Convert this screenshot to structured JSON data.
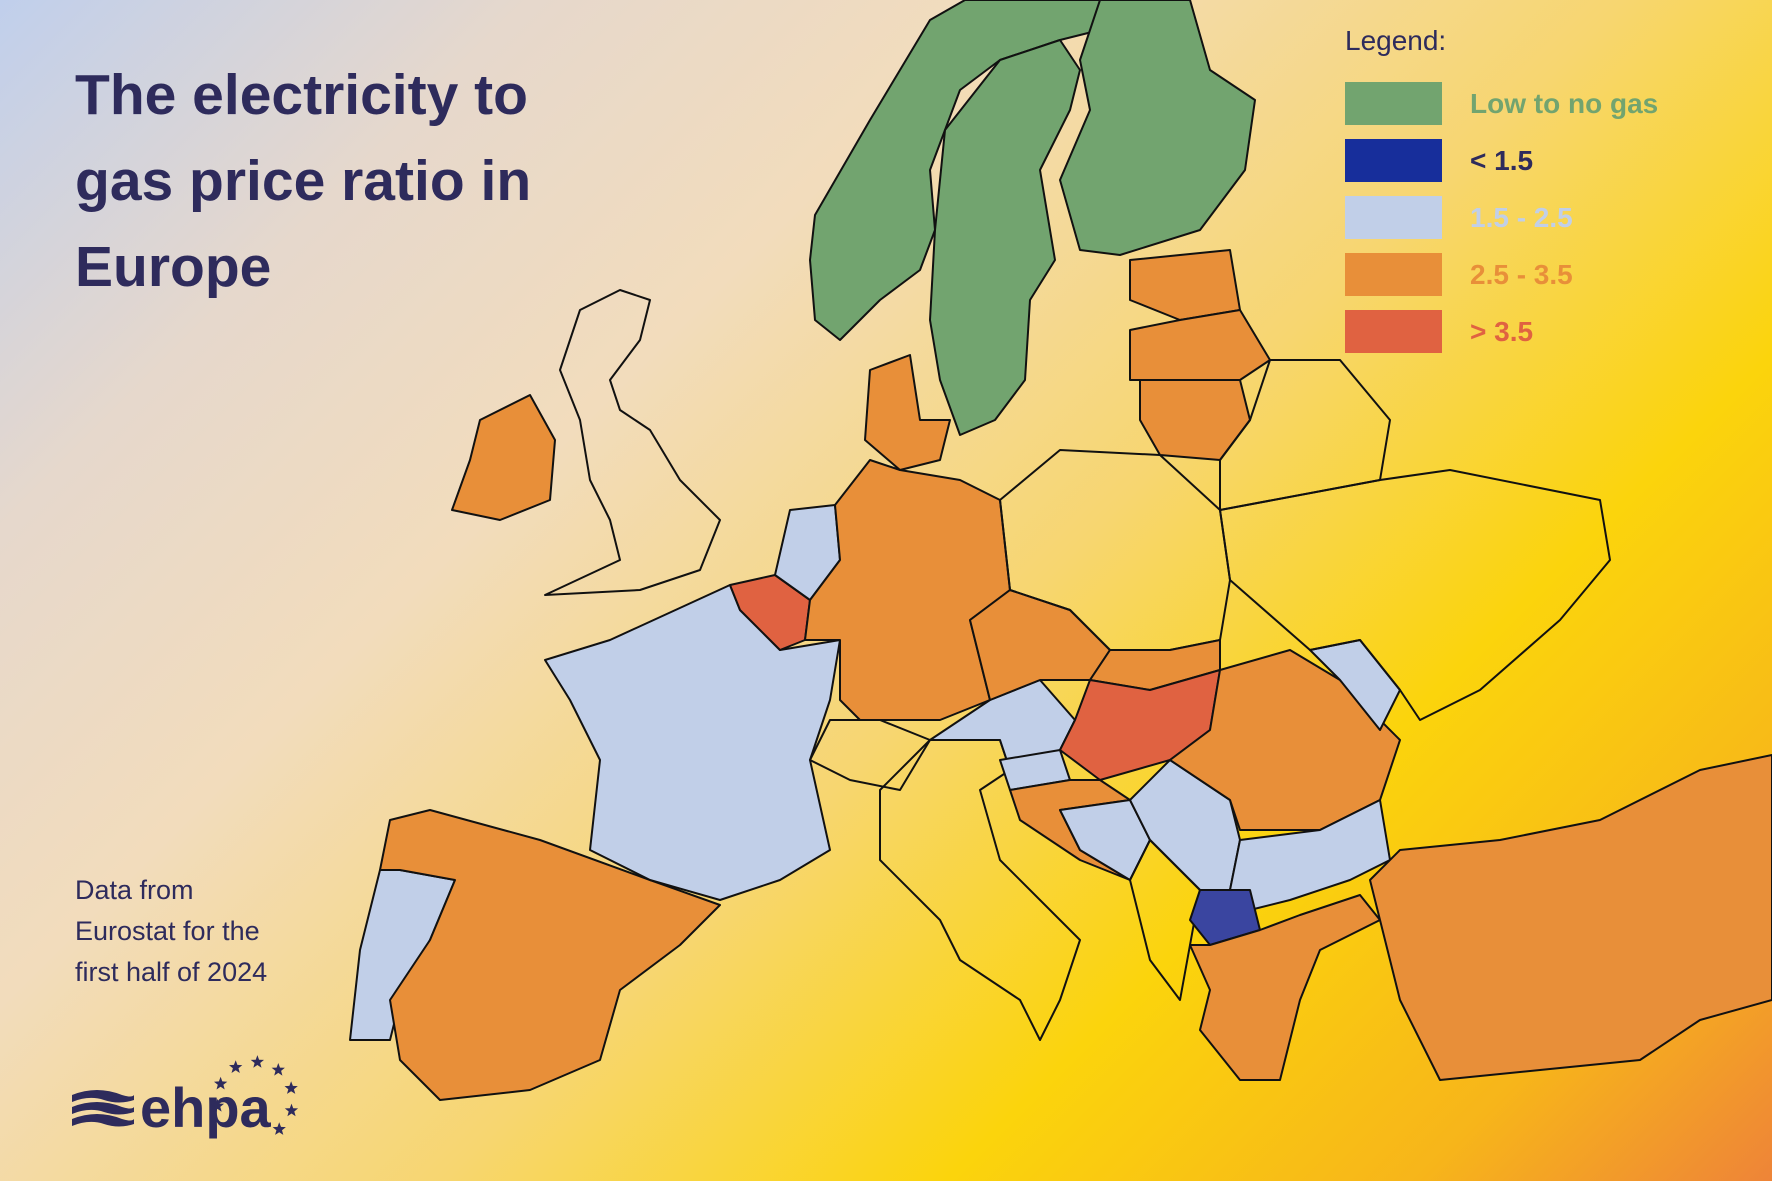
{
  "title": "The electricity to gas price ratio in Europe",
  "source_note": "Data from Eurostat for the first half of 2024",
  "logo": {
    "text": "ehpa",
    "icon": "ehpa-logo-waves-stars"
  },
  "legend": {
    "title": "Legend:",
    "items": [
      {
        "key": "none",
        "label": "Low to no gas",
        "color": "#72a46f"
      },
      {
        "key": "lt15",
        "label": "< 1.5",
        "color": "#172e9b",
        "label_color": "#2e2b5c"
      },
      {
        "key": "15_25",
        "label": "1.5 - 2.5",
        "color": "#c1cfe8"
      },
      {
        "key": "25_35",
        "label": "2.5 - 3.5",
        "color": "#e88f39"
      },
      {
        "key": "gt35",
        "label": "> 3.5",
        "color": "#e06241"
      }
    ]
  },
  "map": {
    "no_data_fill": "none",
    "dark_blue_map_fill": "#3a45a0",
    "regions": [
      {
        "id": "norway",
        "category": "none"
      },
      {
        "id": "sweden",
        "category": "none"
      },
      {
        "id": "finland",
        "category": "none"
      },
      {
        "id": "ireland",
        "category": "25_35"
      },
      {
        "id": "united-kingdom",
        "category": null
      },
      {
        "id": "portugal",
        "category": "15_25"
      },
      {
        "id": "spain",
        "category": "25_35"
      },
      {
        "id": "france",
        "category": "15_25"
      },
      {
        "id": "belgium",
        "category": "gt35"
      },
      {
        "id": "netherlands",
        "category": "15_25"
      },
      {
        "id": "germany",
        "category": "25_35"
      },
      {
        "id": "denmark",
        "category": "25_35"
      },
      {
        "id": "switzerland",
        "category": null
      },
      {
        "id": "italy",
        "category": null
      },
      {
        "id": "austria",
        "category": "15_25"
      },
      {
        "id": "czechia",
        "category": "25_35"
      },
      {
        "id": "poland",
        "category": null
      },
      {
        "id": "slovakia",
        "category": "25_35"
      },
      {
        "id": "hungary",
        "category": "gt35"
      },
      {
        "id": "slovenia",
        "category": "15_25"
      },
      {
        "id": "croatia",
        "category": "25_35"
      },
      {
        "id": "bosnia",
        "category": "15_25"
      },
      {
        "id": "serbia",
        "category": "15_25"
      },
      {
        "id": "albania-montenegro",
        "category": null
      },
      {
        "id": "romania",
        "category": "25_35"
      },
      {
        "id": "moldova",
        "category": "15_25"
      },
      {
        "id": "bulgaria",
        "category": "15_25"
      },
      {
        "id": "north-macedonia",
        "category": "lt15"
      },
      {
        "id": "greece",
        "category": "25_35"
      },
      {
        "id": "turkey",
        "category": "25_35"
      },
      {
        "id": "estonia",
        "category": "25_35"
      },
      {
        "id": "latvia",
        "category": "25_35"
      },
      {
        "id": "lithuania",
        "category": "25_35"
      },
      {
        "id": "belarus",
        "category": null
      },
      {
        "id": "ukraine",
        "category": null
      }
    ]
  }
}
